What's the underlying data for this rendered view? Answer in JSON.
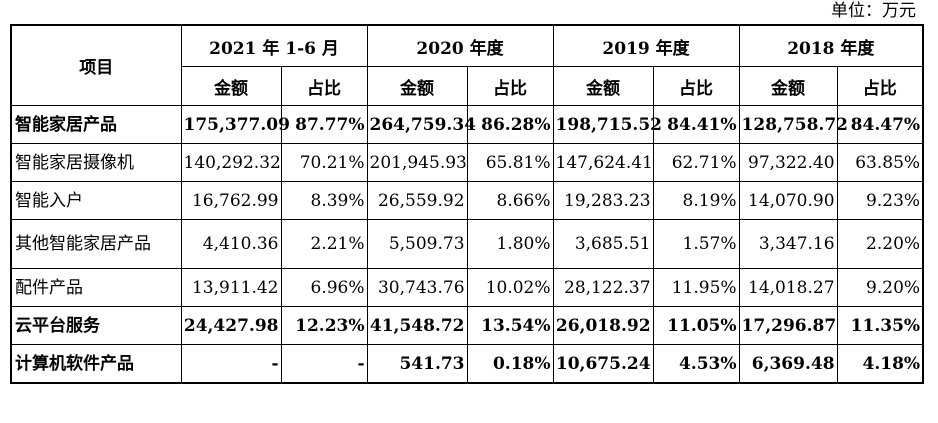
{
  "unit_label": "单位：万元",
  "header": {
    "item": "项目",
    "periods": [
      "2021 年 1-6 月",
      "2020 年度",
      "2019 年度",
      "2018 年度"
    ],
    "amount": "金额",
    "ratio": "占比"
  },
  "rows": [
    {
      "name": "智能家居产品",
      "bold": true,
      "cells": [
        "175,377.09",
        "87.77%",
        "264,759.34",
        "86.28%",
        "198,715.52",
        "84.41%",
        "128,758.72",
        "84.47%"
      ]
    },
    {
      "name": "智能家居摄像机",
      "bold": false,
      "cells": [
        "140,292.32",
        "70.21%",
        "201,945.93",
        "65.81%",
        "147,624.41",
        "62.71%",
        "97,322.40",
        "63.85%"
      ]
    },
    {
      "name": "智能入户",
      "bold": false,
      "cells": [
        "16,762.99",
        "8.39%",
        "26,559.92",
        "8.66%",
        "19,283.23",
        "8.19%",
        "14,070.90",
        "9.23%"
      ]
    },
    {
      "name": "其他智能家居产品",
      "bold": false,
      "cells": [
        "4,410.36",
        "2.21%",
        "5,509.73",
        "1.80%",
        "3,685.51",
        "1.57%",
        "3,347.16",
        "2.20%"
      ]
    },
    {
      "name": "配件产品",
      "bold": false,
      "cells": [
        "13,911.42",
        "6.96%",
        "30,743.76",
        "10.02%",
        "28,122.37",
        "11.95%",
        "14,018.27",
        "9.20%"
      ]
    },
    {
      "name": "云平台服务",
      "bold": true,
      "cells": [
        "24,427.98",
        "12.23%",
        "41,548.72",
        "13.54%",
        "26,018.92",
        "11.05%",
        "17,296.87",
        "11.35%"
      ]
    },
    {
      "name": "计算机软件产品",
      "bold": true,
      "cells": [
        "-",
        "-",
        "541.73",
        "0.18%",
        "10,675.24",
        "4.53%",
        "6,369.48",
        "4.18%"
      ]
    }
  ]
}
